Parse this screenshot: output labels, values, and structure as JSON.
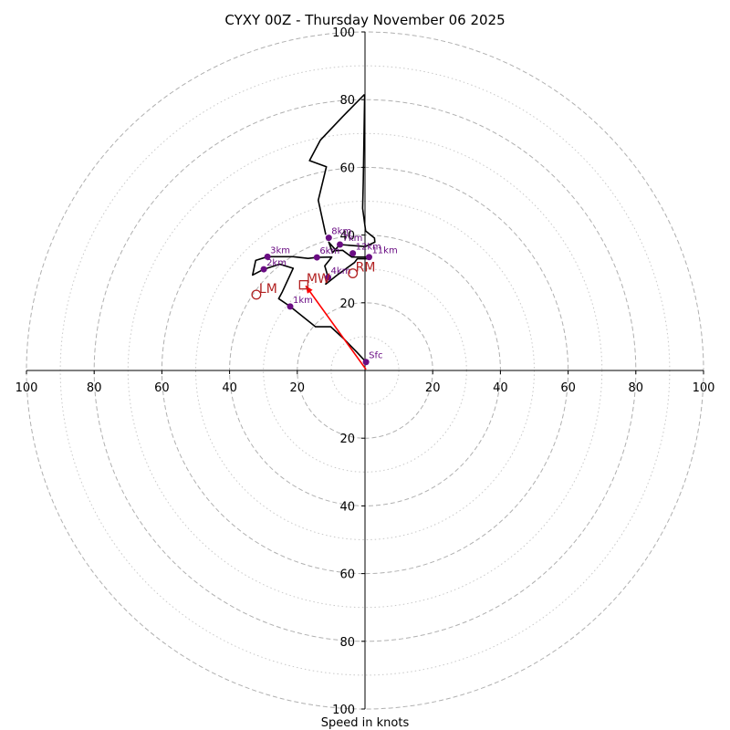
{
  "chart_data": {
    "type": "hodograph",
    "title": "CYXY 00Z - Thursday November 06 2025",
    "xlabel": "Speed in knots",
    "range": [
      -100,
      100
    ],
    "rings_major": [
      20,
      40,
      60,
      80,
      100
    ],
    "rings_minor": [
      10,
      30,
      50,
      70,
      90
    ],
    "tick_labels": {
      "top": [
        "20",
        "40",
        "60",
        "80",
        "100"
      ],
      "bottom": [
        "20",
        "40",
        "60",
        "80",
        "100"
      ],
      "left": [
        "20",
        "40",
        "60",
        "80",
        "100"
      ],
      "right": [
        "20",
        "40",
        "60",
        "80",
        "100"
      ]
    },
    "trace": [
      [
        0.3,
        2.5
      ],
      [
        -2.5,
        5.5
      ],
      [
        -6.2,
        9.3
      ],
      [
        -10.1,
        12.9
      ],
      [
        -14.6,
        12.9
      ],
      [
        -22.1,
        18.9
      ],
      [
        -25.5,
        21.2
      ],
      [
        -24.4,
        23.3
      ],
      [
        -21.2,
        30.2
      ],
      [
        -25.2,
        31.4
      ],
      [
        -29.9,
        29.9
      ],
      [
        -33.2,
        28.2
      ],
      [
        -32.3,
        32.5
      ],
      [
        -28.8,
        33.6
      ],
      [
        -21.2,
        33.6
      ],
      [
        -16.8,
        33.1
      ],
      [
        -14.2,
        33.4
      ],
      [
        -9.8,
        33.5
      ],
      [
        -11.9,
        30.9
      ],
      [
        -10.9,
        27.5
      ],
      [
        -11.6,
        25.5
      ],
      [
        -8.2,
        28.2
      ],
      [
        -3.1,
        31.9
      ],
      [
        -2.3,
        33.0
      ],
      [
        1.3,
        33.0
      ],
      [
        1.3,
        33.5
      ],
      [
        -3.9,
        33.5
      ],
      [
        -6.6,
        35.5
      ],
      [
        -8.5,
        35.4
      ],
      [
        -10.7,
        37.9
      ],
      [
        -9.6,
        34.8
      ],
      [
        -7.4,
        37.2
      ],
      [
        0.1,
        36.6
      ],
      [
        2.9,
        37.9
      ],
      [
        2.8,
        39.1
      ],
      [
        0.2,
        41.2
      ],
      [
        -0.7,
        47.9
      ],
      [
        -0.5,
        55.6
      ],
      [
        -0.1,
        80.9
      ],
      [
        -0.3,
        81.4
      ],
      [
        -6.5,
        75.1
      ],
      [
        -13.2,
        68.0
      ],
      [
        -16.4,
        62.0
      ],
      [
        -11.4,
        60.2
      ],
      [
        -13.8,
        50.3
      ],
      [
        -11.6,
        40.1
      ]
    ],
    "height_markers": [
      {
        "label": "Sfc",
        "u": 0.3,
        "v": 2.5
      },
      {
        "label": "1km",
        "u": -22.1,
        "v": 18.9
      },
      {
        "label": "2km",
        "u": -29.9,
        "v": 29.9
      },
      {
        "label": "3km",
        "u": -28.8,
        "v": 33.6
      },
      {
        "label": "4km",
        "u": -10.9,
        "v": 27.5
      },
      {
        "label": "6km",
        "u": -14.2,
        "v": 33.4
      },
      {
        "label": "7km",
        "u": -7.4,
        "v": 37.2
      },
      {
        "label": "8km",
        "u": -10.7,
        "v": 39.2
      },
      {
        "label": "12km",
        "u": -3.6,
        "v": 34.6
      },
      {
        "label": "11km",
        "u": 1.2,
        "v": 33.5
      }
    ],
    "storm_motion": [
      {
        "label": "MW",
        "marker": "square",
        "u": -18.1,
        "v": 25.3
      },
      {
        "label": "RM",
        "marker": "circle",
        "u": -3.6,
        "v": 28.7
      },
      {
        "label": "LM",
        "marker": "circle",
        "u": -32.1,
        "v": 22.4
      }
    ],
    "shear_arrow": {
      "u_start": 0.3,
      "v_start": 0.3,
      "u_end": -17.5,
      "v_end": 25.0
    },
    "colors": {
      "trace": "#000000",
      "markers": "#6a0d83",
      "storm_motion": "#b22222",
      "arrow": "#ff0000",
      "grid": "#b0b0b0"
    }
  }
}
